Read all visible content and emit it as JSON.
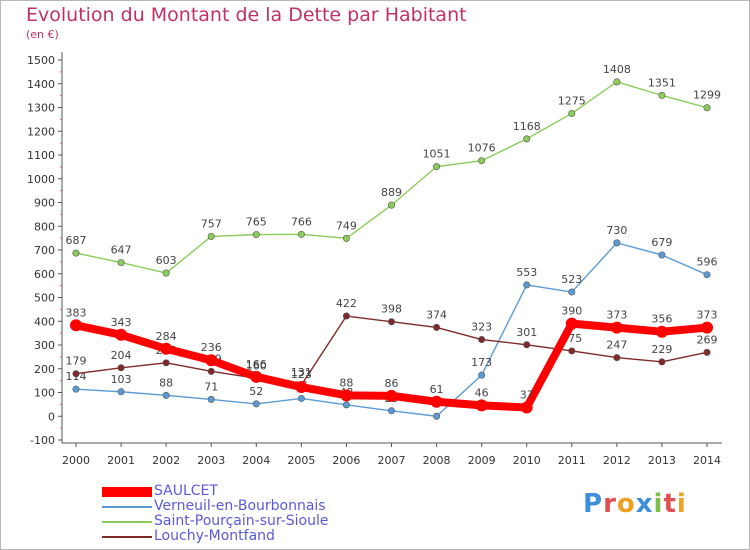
{
  "title": "Evolution du Montant de la Dette par Habitant",
  "unit": "(en €)",
  "logo": {
    "text": "Proxiti",
    "letters": [
      {
        "ch": "P",
        "color": "#3c8fd8"
      },
      {
        "ch": "r",
        "color": "#e05050"
      },
      {
        "ch": "o",
        "color": "#f0a020"
      },
      {
        "ch": "x",
        "color": "#3c8fd8"
      },
      {
        "ch": "i",
        "color": "#7ac043"
      },
      {
        "ch": "t",
        "color": "#e05050"
      },
      {
        "ch": "i",
        "color": "#f0a020"
      }
    ]
  },
  "chart_data": {
    "type": "line",
    "title": "Evolution du Montant de la Dette par Habitant",
    "ylabel": "(en €)",
    "ylim": [
      -100,
      1500
    ],
    "yticks": [
      -100,
      0,
      100,
      200,
      300,
      400,
      500,
      600,
      700,
      800,
      900,
      1000,
      1100,
      1200,
      1300,
      1400,
      1500
    ],
    "x": [
      "2000",
      "2001",
      "2002",
      "2003",
      "2004",
      "2005",
      "2006",
      "2007",
      "2008",
      "2009",
      "2010",
      "2011",
      "2012",
      "2013",
      "2014"
    ],
    "grid": false,
    "legend": "bottom-left",
    "series": [
      {
        "name": "SAULCET",
        "color": "#ff0000",
        "thick": true,
        "values": [
          383,
          343,
          284,
          236,
          166,
          123,
          88,
          86,
          61,
          46,
          37,
          390,
          373,
          356,
          373
        ]
      },
      {
        "name": "Verneuil-en-Bourbonnais",
        "color": "#5b9bd5",
        "thick": false,
        "values": [
          114,
          103,
          88,
          71,
          52,
          75,
          48,
          23,
          0,
          173,
          553,
          523,
          730,
          679,
          596
        ]
      },
      {
        "name": "Saint-Pourçain-sur-Sioule",
        "color": "#8ccc5a",
        "thick": false,
        "values": [
          687,
          647,
          603,
          757,
          765,
          766,
          749,
          889,
          1051,
          1076,
          1168,
          1275,
          1408,
          1351,
          1299
        ]
      },
      {
        "name": "Louchy-Montfand",
        "color": "#7f2a2a",
        "thick": false,
        "values": [
          179,
          204,
          225,
          189,
          160,
          131,
          422,
          398,
          374,
          323,
          301,
          275,
          247,
          229,
          269
        ]
      }
    ]
  }
}
